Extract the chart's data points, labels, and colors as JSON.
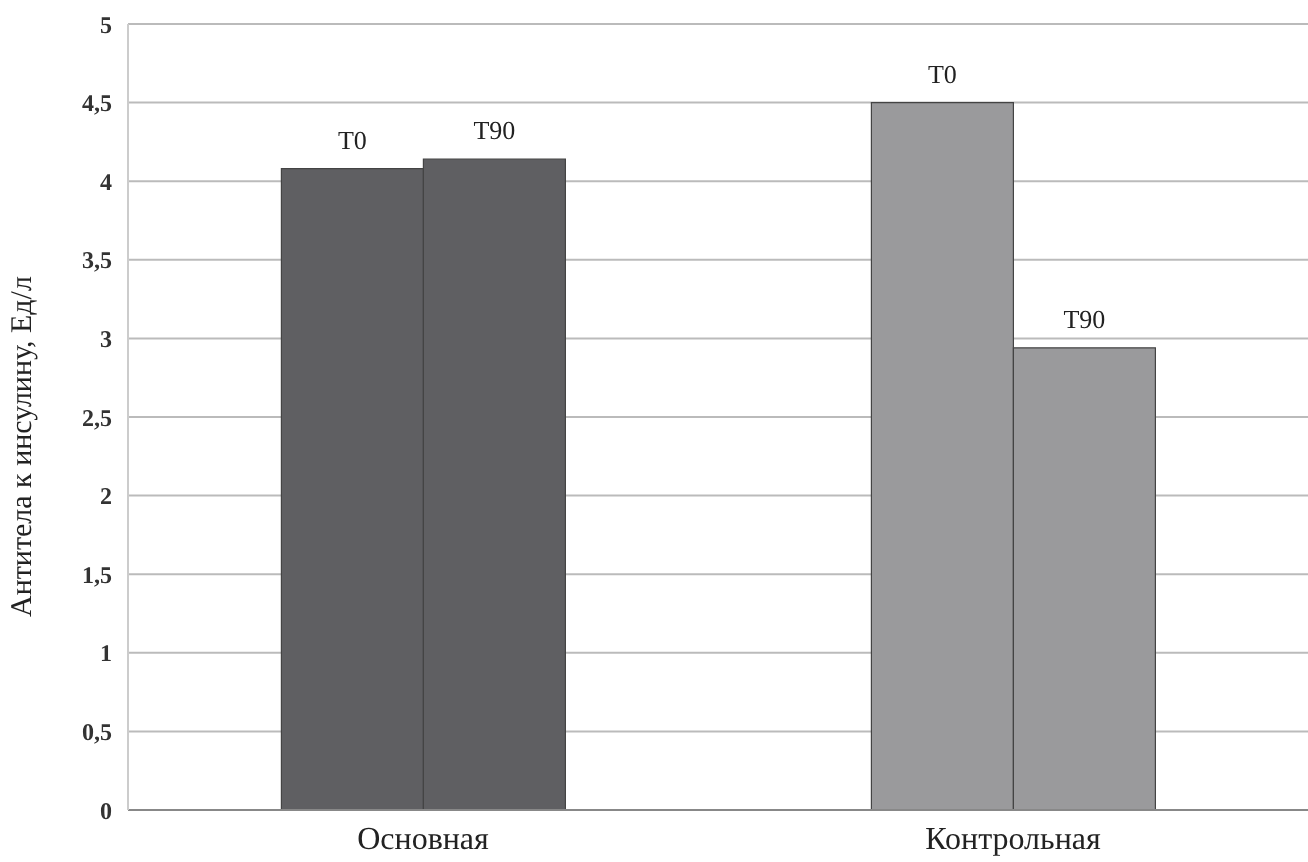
{
  "chart_data": {
    "type": "bar",
    "ylabel": "Антитела к инсулину, Ед/л",
    "categories": [
      "Основная",
      "Контрольная"
    ],
    "series": [
      {
        "name": "T0",
        "colors": [
          "#5f5f62",
          "#9a9a9c"
        ],
        "values": [
          4.08,
          4.5
        ]
      },
      {
        "name": "T90",
        "colors": [
          "#5f5f62",
          "#9a9a9c"
        ],
        "values": [
          4.14,
          2.94
        ]
      }
    ],
    "ylim": [
      0,
      5
    ],
    "yticks": [
      0,
      {
        "value": 0.5,
        "label": "0,5"
      },
      1,
      {
        "value": 1.5,
        "label": "1,5"
      },
      2,
      {
        "value": 2.5,
        "label": "2,5"
      },
      3,
      {
        "value": 3.5,
        "label": "3,5"
      },
      4,
      {
        "value": 4.5,
        "label": "4,5"
      },
      5
    ],
    "grid": "y",
    "legend": false
  }
}
